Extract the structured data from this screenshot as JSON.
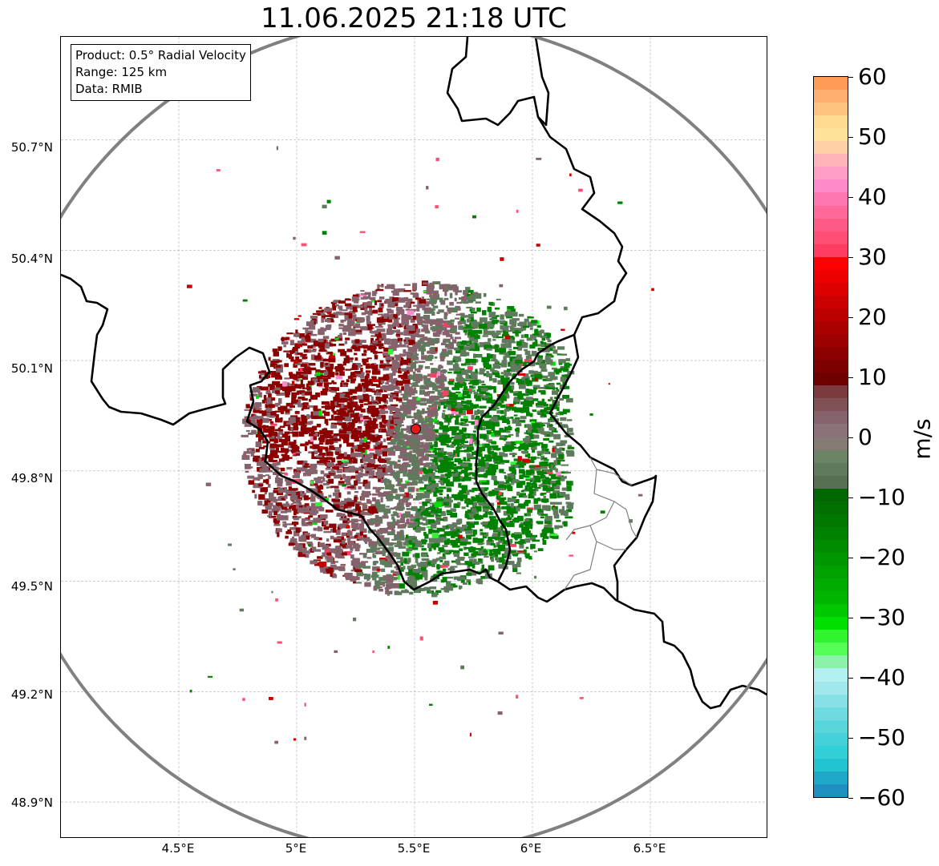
{
  "title": "11.06.2025 21:18 UTC",
  "info_box": {
    "product": "Product: 0.5° Radial Velocity",
    "range": "Range: 125 km",
    "data": "Data: RMIB"
  },
  "axes": {
    "lat_ticks": [
      "50.7°N",
      "50.4°N",
      "50.1°N",
      "49.8°N",
      "49.5°N",
      "49.2°N",
      "48.9°N"
    ],
    "lon_ticks": [
      "4.5°E",
      "5°E",
      "5.5°E",
      "6°E",
      "6.5°E"
    ],
    "lat_range": [
      48.8,
      50.98
    ],
    "lon_range": [
      4.0,
      7.0
    ]
  },
  "radar_site": {
    "lat": 49.914,
    "lon": 5.505,
    "color": "#e8161b"
  },
  "colorbar": {
    "label": "m/s",
    "ticks": [
      "60",
      "50",
      "40",
      "30",
      "20",
      "10",
      "0",
      "−10",
      "−20",
      "−30",
      "−40",
      "−50",
      "−60"
    ],
    "range": [
      -60,
      60
    ],
    "colors_top_to_bottom": [
      "#ff9b57",
      "#ffb071",
      "#ffc27f",
      "#ffd98f",
      "#ffe39b",
      "#ffd1a5",
      "#ffb4bc",
      "#ff9fc8",
      "#ff8acc",
      "#ff77b0",
      "#ff6a9a",
      "#ff5a86",
      "#ff4d73",
      "#ff3d62",
      "#ff0000",
      "#ee0000",
      "#de0000",
      "#cc0000",
      "#bc0000",
      "#ac0000",
      "#9c0000",
      "#8c0000",
      "#7d0000",
      "#700000",
      "#7a3a3e",
      "#805055",
      "#86626c",
      "#8b7278",
      "#857a74",
      "#6c8466",
      "#5f7a5c",
      "#566e51",
      "#006600",
      "#006f00",
      "#007800",
      "#008200",
      "#008c00",
      "#009600",
      "#00a100",
      "#00ab00",
      "#00b500",
      "#00c800",
      "#00e000",
      "#2ef52e",
      "#55ff55",
      "#8af2aa",
      "#b2f0f2",
      "#a0e8ec",
      "#86e0e6",
      "#6fdbe0",
      "#58d6dc",
      "#44d2d8",
      "#30d0d6",
      "#22c4d2",
      "#1fa9c8",
      "#1d8fc0"
    ]
  },
  "colors": {
    "red_velocity": "#8c0000",
    "mauve_velocity": "#86626c",
    "green_velocity": "#008200",
    "gray_green": "#5f7a5c",
    "range_ring": "#808080",
    "border": "#000000"
  }
}
